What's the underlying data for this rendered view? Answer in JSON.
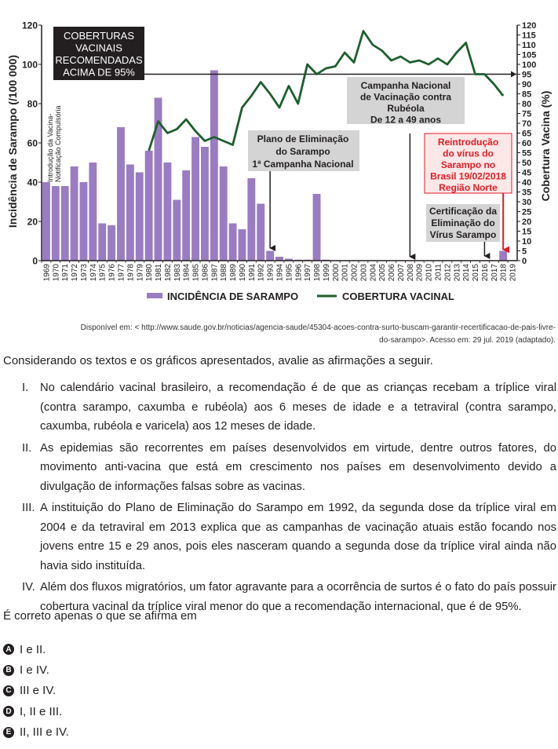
{
  "chart_data": {
    "type": "bar+line",
    "years": [
      "1969",
      "1970",
      "1971",
      "1972",
      "1973",
      "1974",
      "1975",
      "1976",
      "1977",
      "1978",
      "1979",
      "1980",
      "1981",
      "1982",
      "1983",
      "1984",
      "1985",
      "1986",
      "1987",
      "1988",
      "1989",
      "1990",
      "1991",
      "1992",
      "1993",
      "1994",
      "1995",
      "1996",
      "1997",
      "1998",
      "1999",
      "2000",
      "2001",
      "2002",
      "2003",
      "2004",
      "2005",
      "2006",
      "2007",
      "2008",
      "2009",
      "2010",
      "2011",
      "2012",
      "2013",
      "2014",
      "2015",
      "2016",
      "2017",
      "2018",
      "2019"
    ],
    "incidence": [
      40,
      38,
      38,
      48,
      40,
      50,
      19,
      18,
      68,
      49,
      45,
      56,
      83,
      50,
      31,
      46,
      63,
      58,
      97,
      48,
      19,
      16,
      42,
      29,
      5,
      2,
      1,
      0.5,
      0.5,
      34,
      0.5,
      0,
      0,
      0,
      0,
      0,
      0,
      0,
      0,
      0,
      0,
      0,
      0,
      0,
      0,
      0,
      0,
      0,
      0,
      5,
      0
    ],
    "coverage_years": [
      "1980",
      "1981",
      "1982",
      "1983",
      "1984",
      "1985",
      "1986",
      "1987",
      "1988",
      "1989",
      "1990",
      "1991",
      "1992",
      "1993",
      "1994",
      "1995",
      "1996",
      "1997",
      "1998",
      "1999",
      "2000",
      "2001",
      "2002",
      "2003",
      "2004",
      "2005",
      "2006",
      "2007",
      "2008",
      "2009",
      "2010",
      "2011",
      "2012",
      "2013",
      "2014",
      "2015",
      "2016",
      "2017",
      "2018"
    ],
    "coverage": [
      56,
      71,
      65,
      67,
      72,
      66,
      61,
      63,
      61,
      59,
      78,
      84,
      91,
      85,
      78,
      89,
      80,
      100,
      95,
      98,
      99,
      106,
      101,
      117,
      110,
      107,
      102,
      104,
      101,
      102,
      100,
      103,
      100,
      106,
      111,
      95,
      95,
      90,
      84
    ],
    "y_left_label": "Incidência de Sarampo (/100 000)",
    "y_left_ticks": [
      "0",
      "20",
      "40",
      "60",
      "80",
      "100",
      "120"
    ],
    "y_left_range": [
      0,
      120
    ],
    "y_right_label": "Cobertura Vacina (%)",
    "y_right_ticks": [
      "0",
      "5",
      "10",
      "15",
      "20",
      "25",
      "30",
      "35",
      "40",
      "45",
      "50",
      "55",
      "60",
      "65",
      "70",
      "75",
      "80",
      "85",
      "90",
      "95",
      "100",
      "105",
      "110",
      "115",
      "120"
    ],
    "y_right_range": [
      0,
      120
    ],
    "legend": [
      "INCIDÊNCIA DE SARAMPO",
      "COBERTURA VACINAL"
    ],
    "legend_position": "bottom-center",
    "reference_line_value": 95,
    "colors": {
      "bars": "#9a7cc2",
      "line": "#1e5e2e",
      "red": "#e31b23",
      "annotation_gray": "#d4d4d4",
      "dark_box": "#231f20"
    },
    "annotations": {
      "recommended": [
        "COBERTURAS",
        "VACINAIS",
        "RECOMENDADAS",
        "ACIMA DE 95%"
      ],
      "intro_vertical": [
        "Introdução da Vacina-",
        "Notificação Compulsória"
      ],
      "plan": [
        "Plano de Eliminação",
        "do Sarampo",
        "1ª Campanha Nacional"
      ],
      "campaign": [
        "Campanha Nacional",
        "de Vacinação contra",
        "Rubéola",
        "De 12 a 49 anos"
      ],
      "certification": [
        "Certificação da",
        "Eliminação do",
        "Vírus Sarampo"
      ],
      "reintroduction": [
        "Reintrodução",
        "do vírus do",
        "Sarampo no",
        "Brasil 19/02/2018",
        "Região Norte"
      ]
    }
  },
  "source": {
    "line1": "Disponível em: < http://www.saude.gov.br/noticias/agencia-saude/45304-acoes-contra-surto-buscam-garantir-recertificacao-de-pais-livre-",
    "line2": "do-sarampo>. Acesso em: 29 jul. 2019 (adaptado)."
  },
  "intro": "Considerando os textos e os gráficos apresentados, avalie as afirmações a seguir.",
  "statements": [
    {
      "num": "I.",
      "text": "No calendário vacinal brasileiro, a recomendação é de que as crianças recebam a tríplice viral (contra sarampo, caxumba e rubéola) aos 6 meses de idade e a tetraviral (contra sarampo, caxumba, rubéola e varicela) aos 12 meses de idade."
    },
    {
      "num": "II.",
      "text": "As epidemias são recorrentes em países desenvolvidos em virtude, dentre outros fatores, do movimento anti-vacina que está em crescimento nos países em desenvolvimento devido a divulgação de informações falsas sobre as vacinas."
    },
    {
      "num": "III.",
      "text": "A instituição do Plano de Eliminação do Sarampo em 1992, da segunda dose da tríplice viral em 2004 e da tetraviral em 2013 explica que as campanhas de vacinação atuais estão focando nos jovens entre 15 e 29 anos, pois eles nasceram quando a segunda dose da tríplice viral ainda não havia sido instituída."
    },
    {
      "num": "IV.",
      "text": "Além dos fluxos migratórios, um fator agravante para a ocorrência de surtos é o fato do país possuir cobertura vacinal da tríplice viral menor do que a recomendação internacional, que é de 95%."
    }
  ],
  "question": "É correto apenas o que se afirma em",
  "options": [
    {
      "letter": "A",
      "text": "I e II."
    },
    {
      "letter": "B",
      "text": "I e IV."
    },
    {
      "letter": "C",
      "text": "III e IV."
    },
    {
      "letter": "D",
      "text": "I, II e III."
    },
    {
      "letter": "E",
      "text": "II, III e IV."
    }
  ]
}
